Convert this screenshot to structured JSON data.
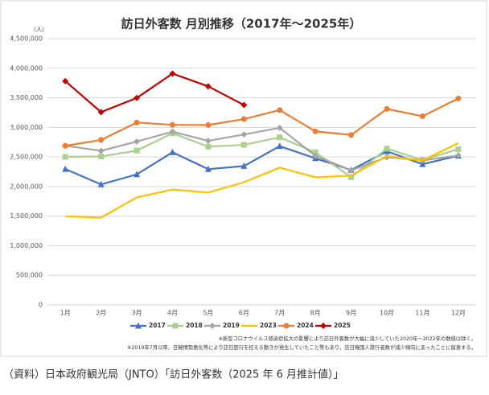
{
  "chart_data": {
    "type": "line",
    "title": "訪日外客数 月別推移（2017年〜2025年）",
    "y_unit": "（人）",
    "categories": [
      "1月",
      "2月",
      "3月",
      "4月",
      "5月",
      "6月",
      "7月",
      "8月",
      "9月",
      "10月",
      "11月",
      "12月"
    ],
    "series": [
      {
        "name": "2017",
        "color": "#4472c4",
        "marker": "triangle",
        "values": [
          2295700,
          2035800,
          2205700,
          2578900,
          2294700,
          2346400,
          2682500,
          2477200,
          2280000,
          2595000,
          2377900,
          2521000
        ]
      },
      {
        "name": "2018",
        "color": "#a9d18e",
        "marker": "square",
        "values": [
          2501400,
          2509300,
          2607900,
          2900700,
          2675100,
          2704600,
          2832000,
          2578000,
          2159600,
          2640600,
          2449000,
          2632000
        ]
      },
      {
        "name": "2019",
        "color": "#a5a5a5",
        "marker": "diamond",
        "values": [
          2689300,
          2604300,
          2760100,
          2926700,
          2773000,
          2880000,
          2991200,
          2520100,
          2272900,
          2496600,
          2441300,
          2526400
        ]
      },
      {
        "name": "2023",
        "color": "#ffc000",
        "marker": "none",
        "values": [
          1497300,
          1475500,
          1817500,
          1949100,
          1899200,
          2073300,
          2320600,
          2156900,
          2184300,
          2516500,
          2440100,
          2734000
        ]
      },
      {
        "name": "2024",
        "color": "#ed7d31",
        "marker": "circle",
        "values": [
          2688500,
          2788000,
          3081600,
          3042900,
          3040000,
          3140000,
          3292500,
          2933000,
          2872200,
          3312000,
          3188000,
          3489000
        ]
      },
      {
        "name": "2025",
        "color": "#c00000",
        "marker": "diamond",
        "values": [
          3781600,
          3258100,
          3497600,
          3908900,
          3693300,
          3377800,
          null,
          null,
          null,
          null,
          null,
          null
        ]
      }
    ],
    "ylim": [
      0,
      4500000
    ],
    "yticks": [
      0,
      {
        "value": 500000,
        "label": "500,000"
      },
      {
        "value": 1000000,
        "label": "1,000,000"
      },
      {
        "value": 1500000,
        "label": "1,500,000"
      },
      {
        "value": 2000000,
        "label": "2,000,000"
      },
      {
        "value": 2500000,
        "label": "2,500,000"
      },
      {
        "value": 3000000,
        "label": "3,000,000"
      },
      {
        "value": 3500000,
        "label": "3,500,000"
      },
      {
        "value": 4000000,
        "label": "4,000,000"
      },
      {
        "value": 4500000,
        "label": "4,500,000"
      }
    ],
    "grid": true,
    "legend": "bottom",
    "notes": [
      "※新型コロナウイルス感染症拡大の影響により訪日外客数が大幅に減少していた2020年〜2022年の数値は除く。",
      "※2019年7月以降、日韓情勢悪化等により訪日旅行を控える動きが発生していたこと等もあり、訪日韓国人旅行者数が減少傾向にあったことに留意する。"
    ],
    "source": "（資料）日本政府観光局（JNTO）「訪日外客数（2025 年 6 月推計値）」"
  }
}
